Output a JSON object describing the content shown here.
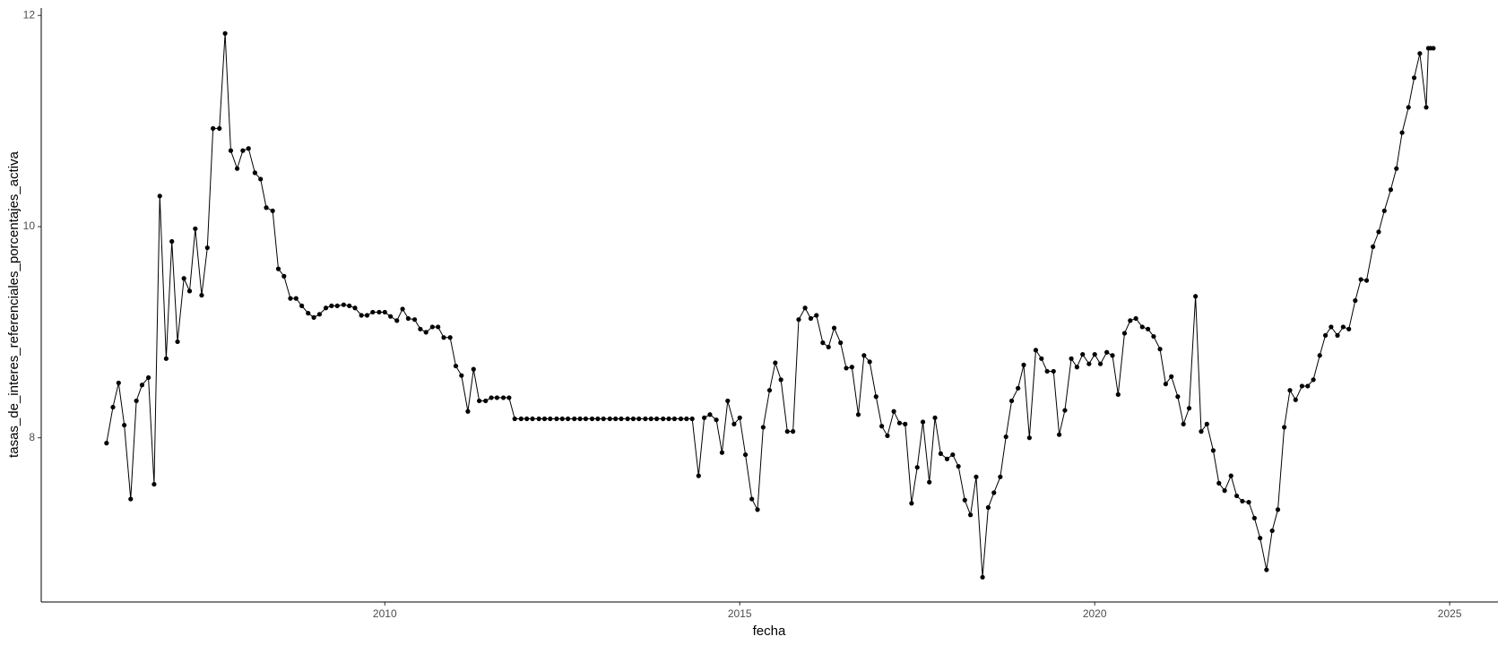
{
  "chart_data": {
    "type": "line",
    "x_label": "fecha",
    "y_label": "tasas_de_interes_referenciales_porcentajes_activa",
    "xlim": [
      2005.16,
      2025.68
    ],
    "ylim": [
      6.445,
      12.07
    ],
    "xticks": [
      2010,
      2015,
      2020,
      2025
    ],
    "yticks": [
      8,
      10,
      12
    ],
    "grid": false,
    "markers": true,
    "x": [
      2006.08,
      2006.17,
      2006.25,
      2006.33,
      2006.42,
      2006.5,
      2006.58,
      2006.67,
      2006.75,
      2006.83,
      2006.92,
      2007,
      2007.08,
      2007.17,
      2007.25,
      2007.33,
      2007.42,
      2007.5,
      2007.58,
      2007.67,
      2007.75,
      2007.83,
      2007.92,
      2008,
      2008.08,
      2008.17,
      2008.25,
      2008.33,
      2008.42,
      2008.5,
      2008.58,
      2008.67,
      2008.75,
      2008.83,
      2008.92,
      2009,
      2009.08,
      2009.17,
      2009.25,
      2009.33,
      2009.42,
      2009.5,
      2009.58,
      2009.67,
      2009.75,
      2009.83,
      2009.92,
      2010,
      2010.08,
      2010.17,
      2010.25,
      2010.33,
      2010.42,
      2010.5,
      2010.58,
      2010.67,
      2010.75,
      2010.83,
      2010.92,
      2011,
      2011.08,
      2011.17,
      2011.25,
      2011.33,
      2011.42,
      2011.5,
      2011.58,
      2011.67,
      2011.75,
      2011.83,
      2011.92,
      2012,
      2012.08,
      2012.17,
      2012.25,
      2012.33,
      2012.42,
      2012.5,
      2012.58,
      2012.67,
      2012.75,
      2012.83,
      2012.92,
      2013,
      2013.08,
      2013.17,
      2013.25,
      2013.33,
      2013.42,
      2013.5,
      2013.58,
      2013.67,
      2013.75,
      2013.83,
      2013.92,
      2014,
      2014.08,
      2014.17,
      2014.25,
      2014.33,
      2014.42,
      2014.5,
      2014.58,
      2014.67,
      2014.75,
      2014.83,
      2014.92,
      2015,
      2015.08,
      2015.17,
      2015.25,
      2015.33,
      2015.42,
      2015.5,
      2015.58,
      2015.67,
      2015.75,
      2015.83,
      2015.92,
      2016,
      2016.08,
      2016.17,
      2016.25,
      2016.33,
      2016.42,
      2016.5,
      2016.58,
      2016.67,
      2016.75,
      2016.83,
      2016.92,
      2017,
      2017.08,
      2017.17,
      2017.25,
      2017.33,
      2017.42,
      2017.5,
      2017.58,
      2017.67,
      2017.75,
      2017.83,
      2017.92,
      2018,
      2018.08,
      2018.17,
      2018.25,
      2018.33,
      2018.42,
      2018.5,
      2018.58,
      2018.67,
      2018.75,
      2018.83,
      2018.92,
      2019,
      2019.08,
      2019.17,
      2019.25,
      2019.33,
      2019.42,
      2019.5,
      2019.58,
      2019.67,
      2019.75,
      2019.83,
      2019.92,
      2020,
      2020.08,
      2020.17,
      2020.25,
      2020.33,
      2020.42,
      2020.5,
      2020.58,
      2020.67,
      2020.75,
      2020.83,
      2020.92,
      2021,
      2021.08,
      2021.17,
      2021.25,
      2021.33,
      2021.42,
      2021.5,
      2021.58,
      2021.67,
      2021.75,
      2021.83,
      2021.92,
      2022,
      2022.08,
      2022.17,
      2022.25,
      2022.33,
      2022.42,
      2022.5,
      2022.58,
      2022.67,
      2022.75,
      2022.83,
      2022.92,
      2023,
      2023.08,
      2023.17,
      2023.25,
      2023.33,
      2023.42,
      2023.5,
      2023.58,
      2023.67,
      2023.75,
      2023.83,
      2023.92,
      2024,
      2024.08,
      2024.17,
      2024.25,
      2024.33,
      2024.42,
      2024.5,
      2024.58,
      2024.67,
      2024.7,
      2024.73,
      2024.77
    ],
    "series": [
      {
        "color": "#000000",
        "values": [
          7.95,
          8.29,
          8.52,
          8.12,
          7.42,
          8.35,
          8.5,
          8.57,
          7.56,
          10.29,
          8.75,
          9.86,
          8.91,
          9.51,
          9.39,
          9.98,
          9.35,
          9.8,
          10.93,
          10.93,
          11.83,
          10.72,
          10.55,
          10.72,
          10.74,
          10.51,
          10.45,
          10.18,
          10.15,
          9.6,
          9.53,
          9.32,
          9.32,
          9.25,
          9.18,
          9.14,
          9.17,
          9.23,
          9.25,
          9.25,
          9.26,
          9.25,
          9.23,
          9.16,
          9.16,
          9.19,
          9.19,
          9.19,
          9.15,
          9.11,
          9.22,
          9.13,
          9.12,
          9.03,
          9,
          9.05,
          9.05,
          8.95,
          8.95,
          8.68,
          8.59,
          8.25,
          8.65,
          8.35,
          8.35,
          8.38,
          8.38,
          8.38,
          8.38,
          8.18,
          8.18,
          8.18,
          8.18,
          8.18,
          8.18,
          8.18,
          8.18,
          8.18,
          8.18,
          8.18,
          8.18,
          8.18,
          8.18,
          8.18,
          8.18,
          8.18,
          8.18,
          8.18,
          8.18,
          8.18,
          8.18,
          8.18,
          8.18,
          8.18,
          8.18,
          8.18,
          8.18,
          8.18,
          8.18,
          8.18,
          7.64,
          8.19,
          8.22,
          8.17,
          7.86,
          8.35,
          8.13,
          8.19,
          7.84,
          7.42,
          7.32,
          8.1,
          8.45,
          8.71,
          8.55,
          8.06,
          8.06,
          9.12,
          9.23,
          9.13,
          9.16,
          8.9,
          8.86,
          9.04,
          8.9,
          8.66,
          8.67,
          8.22,
          8.78,
          8.72,
          8.39,
          8.11,
          8.02,
          8.25,
          8.14,
          8.13,
          7.38,
          7.72,
          8.15,
          7.58,
          8.19,
          7.85,
          7.8,
          7.84,
          7.73,
          7.41,
          7.27,
          7.63,
          6.68,
          7.34,
          7.48,
          7.63,
          8.01,
          8.35,
          8.47,
          8.69,
          8,
          8.83,
          8.75,
          8.63,
          8.63,
          8.03,
          8.26,
          8.75,
          8.67,
          8.79,
          8.7,
          8.79,
          8.7,
          8.81,
          8.78,
          8.41,
          8.99,
          9.11,
          9.13,
          9.05,
          9.03,
          8.96,
          8.84,
          8.51,
          8.58,
          8.39,
          8.13,
          8.28,
          9.34,
          8.06,
          8.13,
          7.88,
          7.57,
          7.5,
          7.64,
          7.45,
          7.4,
          7.39,
          7.24,
          7.05,
          6.75,
          7.12,
          7.32,
          8.1,
          8.45,
          8.36,
          8.49,
          8.49,
          8.55,
          8.78,
          8.97,
          9.05,
          8.97,
          9.05,
          9.03,
          9.3,
          9.5,
          9.49,
          9.81,
          9.95,
          10.15,
          10.35,
          10.55,
          10.89,
          11.13,
          11.41,
          11.64,
          11.13,
          11.69,
          11.69,
          11.69
        ]
      }
    ]
  }
}
